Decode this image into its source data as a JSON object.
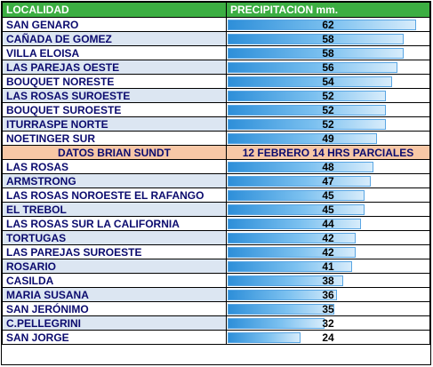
{
  "header": {
    "locality": "LOCALIDAD",
    "precipitation": "PRECIPITACION mm."
  },
  "max_value": 62,
  "group1": [
    {
      "name": "SAN GENARO",
      "value": 62
    },
    {
      "name": "CAÑADA DE GOMEZ",
      "value": 58
    },
    {
      "name": "VILLA ELOISA",
      "value": 58
    },
    {
      "name": "LAS PAREJAS OESTE",
      "value": 56
    },
    {
      "name": "BOUQUET NORESTE",
      "value": 54
    },
    {
      "name": "LAS ROSAS SUROESTE",
      "value": 52
    },
    {
      "name": "BOUQUET SUROESTE",
      "value": 52
    },
    {
      "name": "ITURRASPE NORTE",
      "value": 52
    },
    {
      "name": "NOETINGER SUR",
      "value": 49
    }
  ],
  "section": {
    "left": "DATOS BRIAN SUNDT",
    "right": "12 FEBRERO 14 HRS PARCIALES"
  },
  "group2": [
    {
      "name": "LAS ROSAS",
      "value": 48
    },
    {
      "name": "ARMSTRONG",
      "value": 47
    },
    {
      "name": "LAS ROSAS NOROESTE EL RAFANGO",
      "value": 45
    },
    {
      "name": "EL TREBOL",
      "value": 45
    },
    {
      "name": "LAS ROSAS SUR LA CALIFORNIA",
      "value": 44
    },
    {
      "name": "TORTUGAS",
      "value": 42
    },
    {
      "name": "LAS PAREJAS SUROESTE",
      "value": 42
    },
    {
      "name": "ROSARIO",
      "value": 41
    },
    {
      "name": "CASILDA",
      "value": 38
    },
    {
      "name": "MARIA SUSANA",
      "value": 36
    },
    {
      "name": "SAN JERÓNIMO",
      "value": 35
    },
    {
      "name": "C.PELLEGRINI",
      "value": 32
    },
    {
      "name": "SAN JORGE",
      "value": 24
    }
  ]
}
